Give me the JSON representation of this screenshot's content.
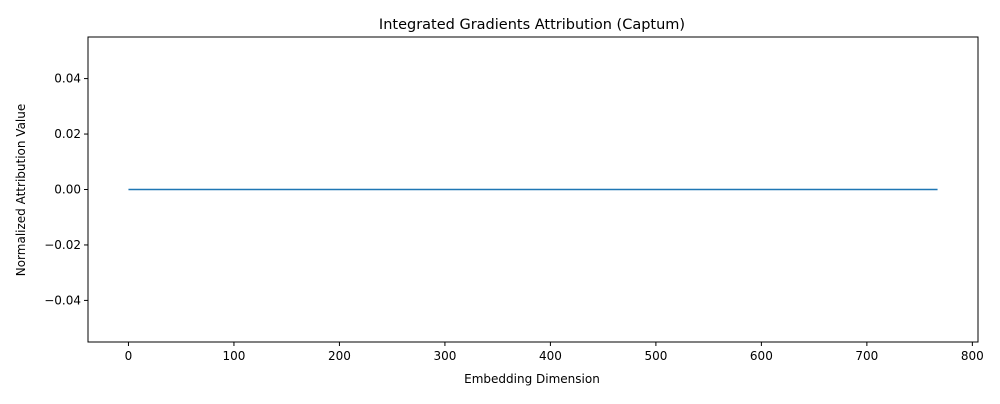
{
  "chart_data": {
    "type": "line",
    "title": "Integrated Gradients Attribution (Captum)",
    "xlabel": "Embedding Dimension",
    "ylabel": "Normalized Attribution Value",
    "xlim": [
      -38.35,
      805.35
    ],
    "ylim": [
      -0.055,
      0.055
    ],
    "xticks": [
      0,
      100,
      200,
      300,
      400,
      500,
      600,
      700,
      800
    ],
    "xtick_labels": [
      "0",
      "100",
      "200",
      "300",
      "400",
      "500",
      "600",
      "700",
      "800"
    ],
    "yticks": [
      -0.04,
      -0.02,
      0.0,
      0.02,
      0.04
    ],
    "ytick_labels": [
      "−0.04",
      "−0.02",
      "0.00",
      "0.02",
      "0.04"
    ],
    "grid": false,
    "series": [
      {
        "color": "#1f77b4",
        "x": [
          0,
          767
        ],
        "y": [
          0,
          0
        ]
      }
    ]
  }
}
